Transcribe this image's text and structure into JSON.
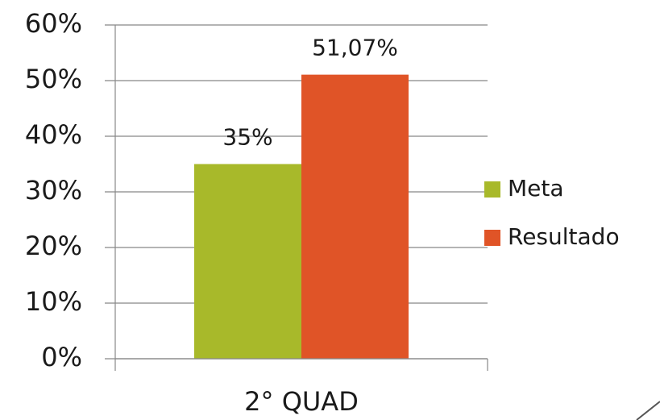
{
  "chart_data": {
    "type": "bar",
    "categories": [
      "2° QUAD"
    ],
    "series": [
      {
        "name": "Meta",
        "color": "#a8b92a",
        "values": [
          35
        ],
        "value_labels": [
          "35%"
        ]
      },
      {
        "name": "Resultado",
        "color": "#e05427",
        "values": [
          51.07
        ],
        "value_labels": [
          "51,07%"
        ]
      }
    ],
    "ylim": [
      0,
      60
    ],
    "yticks": [
      {
        "value": 0,
        "label": "0%"
      },
      {
        "value": 10,
        "label": "10%"
      },
      {
        "value": 20,
        "label": "20%"
      },
      {
        "value": 30,
        "label": "30%"
      },
      {
        "value": 40,
        "label": "40%"
      },
      {
        "value": 50,
        "label": "50%"
      },
      {
        "value": 60,
        "label": "60%"
      }
    ],
    "grid": true,
    "legend": "right"
  }
}
